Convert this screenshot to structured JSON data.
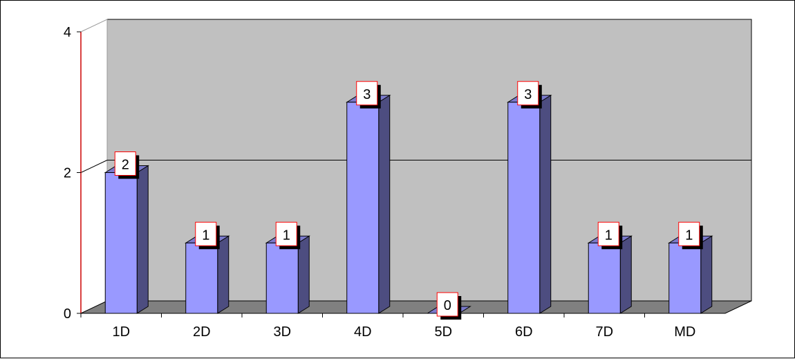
{
  "chart_data": {
    "type": "bar",
    "title": "",
    "xlabel": "",
    "ylabel": "",
    "categories": [
      "1D",
      "2D",
      "3D",
      "4D",
      "5D",
      "6D",
      "7D",
      "MD"
    ],
    "values": [
      2,
      1,
      1,
      3,
      0,
      3,
      1,
      1
    ],
    "data_labels": [
      "2",
      "1",
      "1",
      "3",
      "0",
      "3",
      "1",
      "1"
    ],
    "ylim": [
      0,
      4
    ],
    "yticks": [
      "0",
      "2",
      "4"
    ],
    "grid": true,
    "legend": "none",
    "style": "3d-column"
  },
  "colors": {
    "bar_front": "#9999ff",
    "bar_side": "#4d4d80",
    "bar_top": "#7a7acc",
    "wall": "#c0c0c0",
    "floor": "#808080",
    "axis": "#cc0000",
    "label_border": "#ff0000",
    "label_shadow": "#000000"
  }
}
